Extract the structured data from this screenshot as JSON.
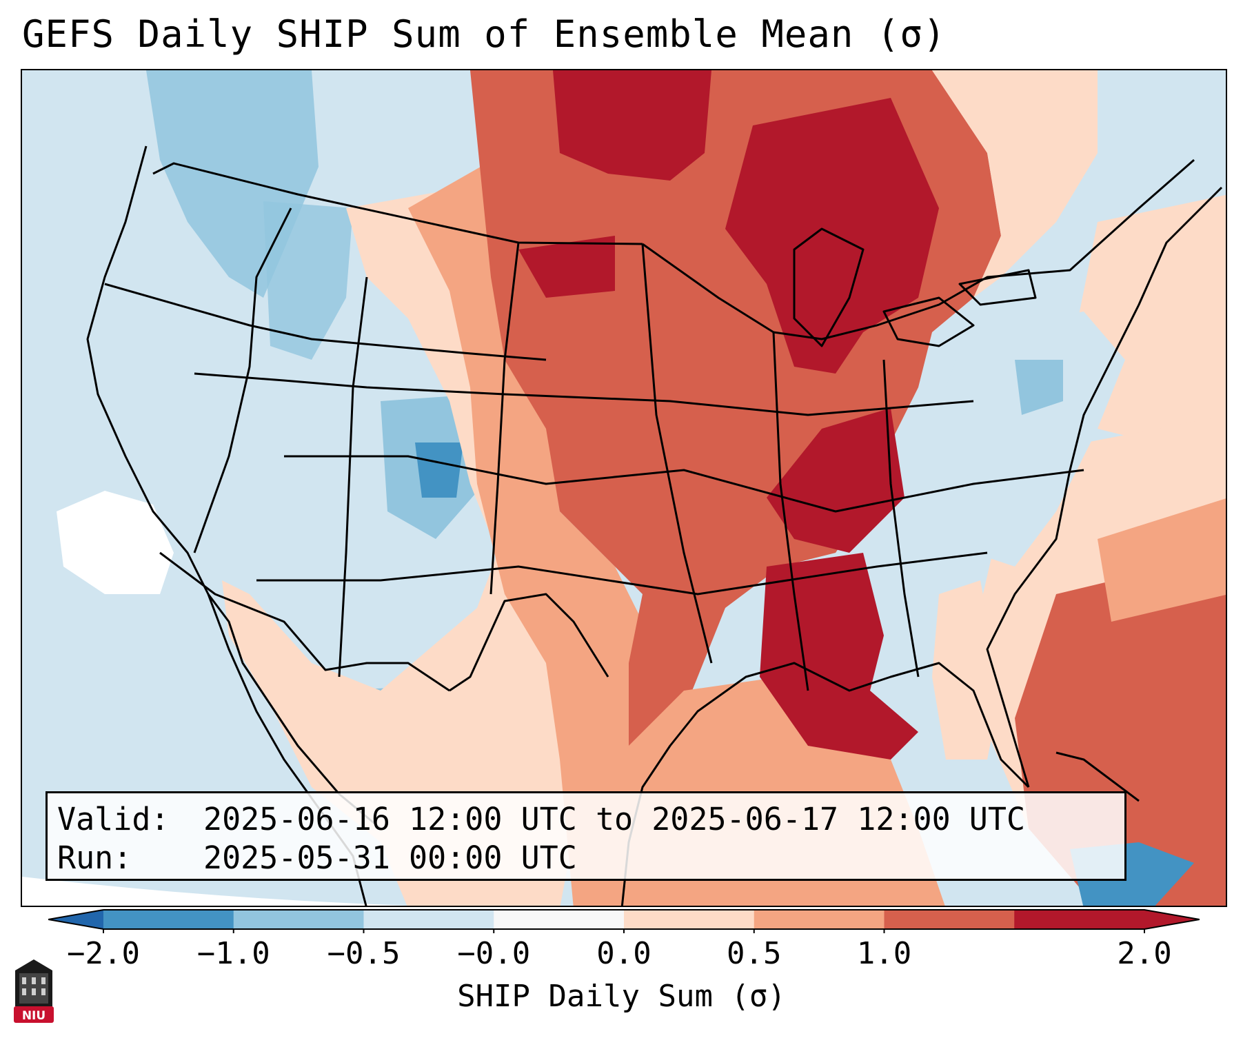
{
  "title": "GEFS Daily SHIP Sum of Ensemble Mean (σ)",
  "info": {
    "valid_key": "Valid:",
    "valid_value": "2025-06-16 12:00 UTC to 2025-06-17 12:00 UTC",
    "run_key": "Run:",
    "run_value": "2025-05-31 00:00 UTC"
  },
  "colorbar": {
    "label": "SHIP Daily Sum (σ)",
    "ticks": [
      "−2.0",
      "−1.0",
      "−0.5",
      "−0.0",
      "0.0",
      "0.5",
      "1.0",
      "2.0"
    ],
    "colors": [
      "#4393c3",
      "#92c5de",
      "#d1e5f0",
      "#f7f7f7",
      "#fddbc7",
      "#f4a582",
      "#d6604d",
      "#b2182b"
    ],
    "extend_low_color": "#2166ac",
    "extend_high_color": "#b2182b"
  },
  "logo": {
    "text": "NIU",
    "icon": "niu-castle-logo-icon"
  }
}
